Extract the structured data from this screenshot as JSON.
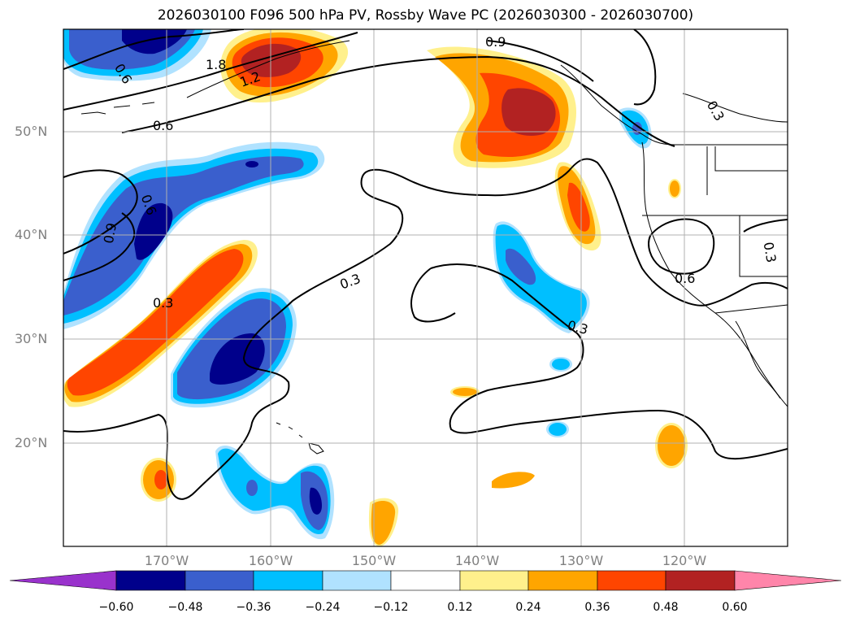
{
  "title": "2026030100 F096 500 hPa PV, Rossby Wave PC (2026030300 - 2026030700)",
  "lat_labels": [
    "50°N",
    "40°N",
    "30°N",
    "20°N"
  ],
  "lon_labels": [
    "170°W",
    "160°W",
    "150°W",
    "140°W",
    "130°W",
    "120°W"
  ],
  "contour_labels": [
    "0.6",
    "1.8",
    "1.2",
    "0.9",
    "0.6",
    "0.6",
    "0.9",
    "0.3",
    "0.3",
    "0.3",
    "0.6",
    "0.3",
    "0.3"
  ],
  "colorbar": {
    "ticks": [
      "−0.60",
      "−0.48",
      "−0.36",
      "−0.24",
      "−0.12",
      "0.12",
      "0.24",
      "0.36",
      "0.48",
      "0.60"
    ],
    "colors": [
      "#9932cc",
      "#00008b",
      "#3a5fcd",
      "#00bfff",
      "#b0e2ff",
      "#ffffff",
      "#fff08c",
      "#ffa500",
      "#ff4500",
      "#b22222",
      "#ff85aa"
    ]
  },
  "colors": {
    "grid": "#b0b0b0",
    "contour": "#000000",
    "coast": "#000000"
  }
}
